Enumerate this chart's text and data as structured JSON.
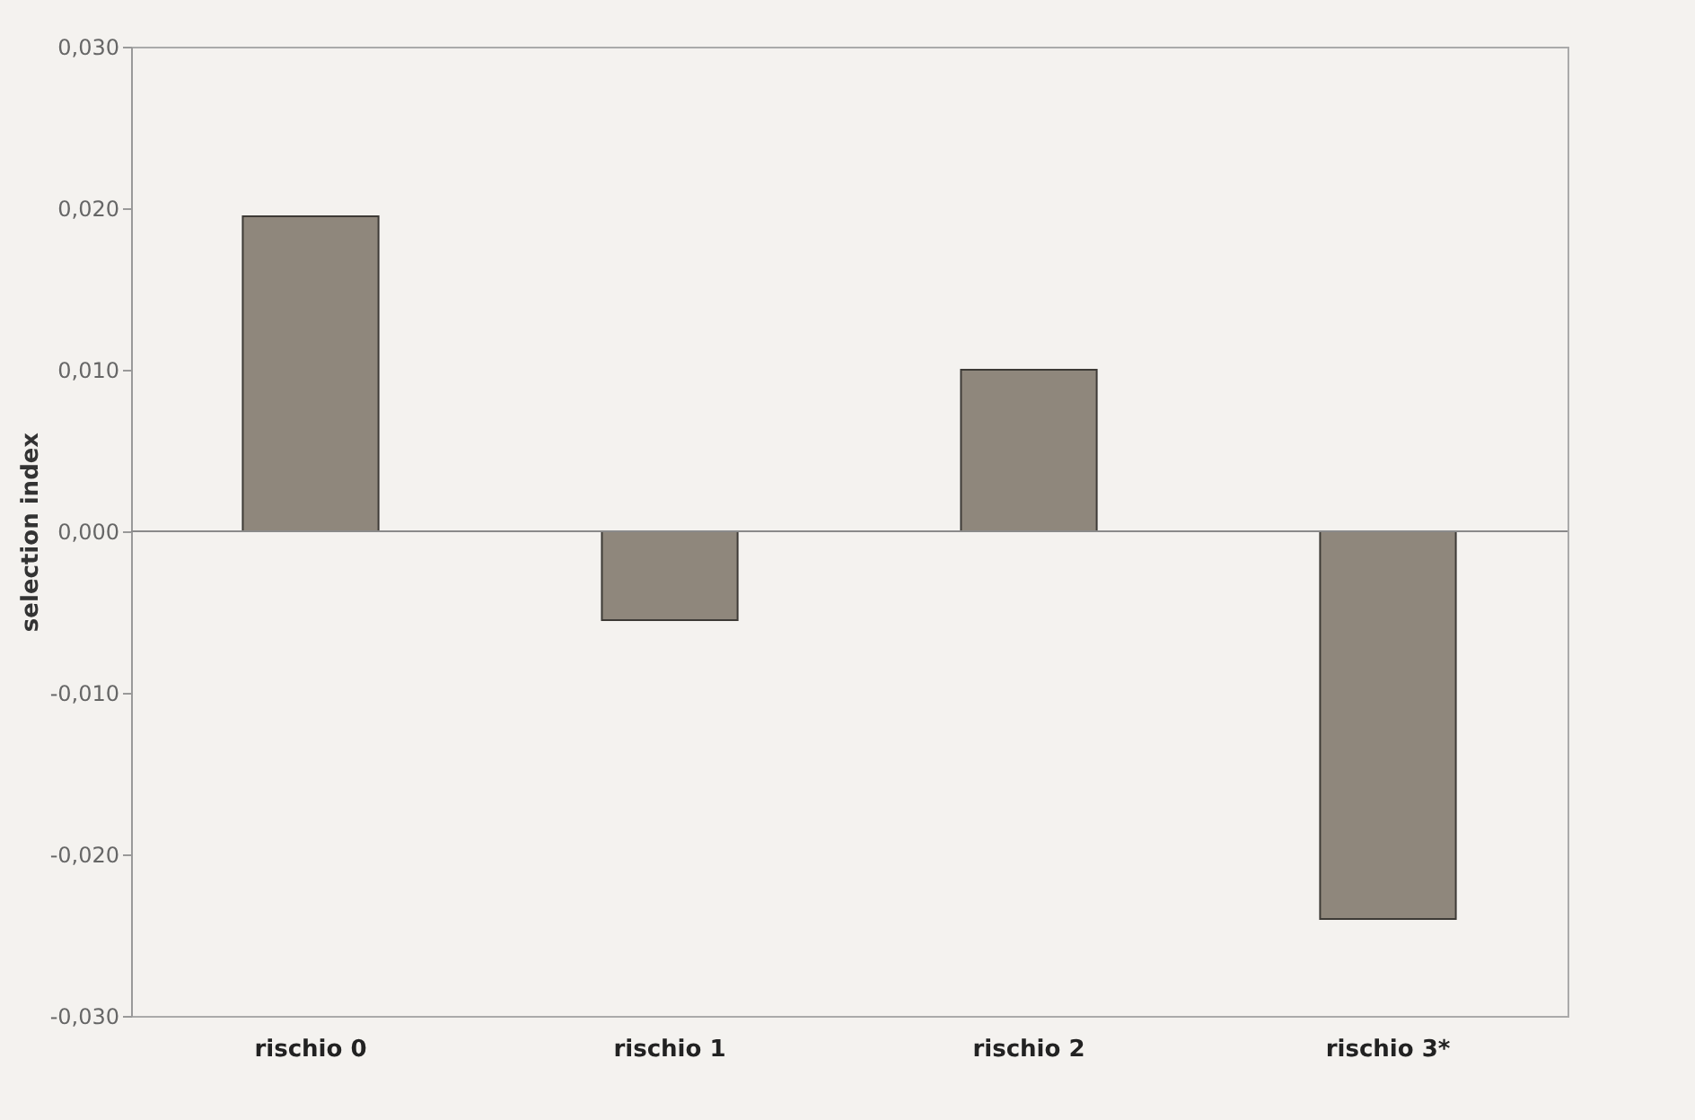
{
  "chart_data": {
    "type": "bar",
    "ylabel": "selection index",
    "categories": [
      "rischio 0",
      "rischio 1",
      "rischio 2",
      "rischio 3*"
    ],
    "values": [
      0.0195,
      -0.0055,
      0.01,
      -0.024
    ],
    "color": "#8f877c",
    "ylim": [
      -0.03,
      0.03
    ],
    "yticks": [
      {
        "value": -0.03,
        "label": "-0,030"
      },
      {
        "value": -0.02,
        "label": "-0,020"
      },
      {
        "value": -0.01,
        "label": "-0,010"
      },
      {
        "value": 0,
        "label": "0,000"
      },
      {
        "value": 0.01,
        "label": "0,010"
      },
      {
        "value": 0.02,
        "label": "0,020"
      },
      {
        "value": 0.03,
        "label": "0,030"
      }
    ],
    "ref_lines": [
      {
        "axis": "y",
        "value": 0,
        "color": "#8a8a8a"
      }
    ],
    "grid": false
  }
}
